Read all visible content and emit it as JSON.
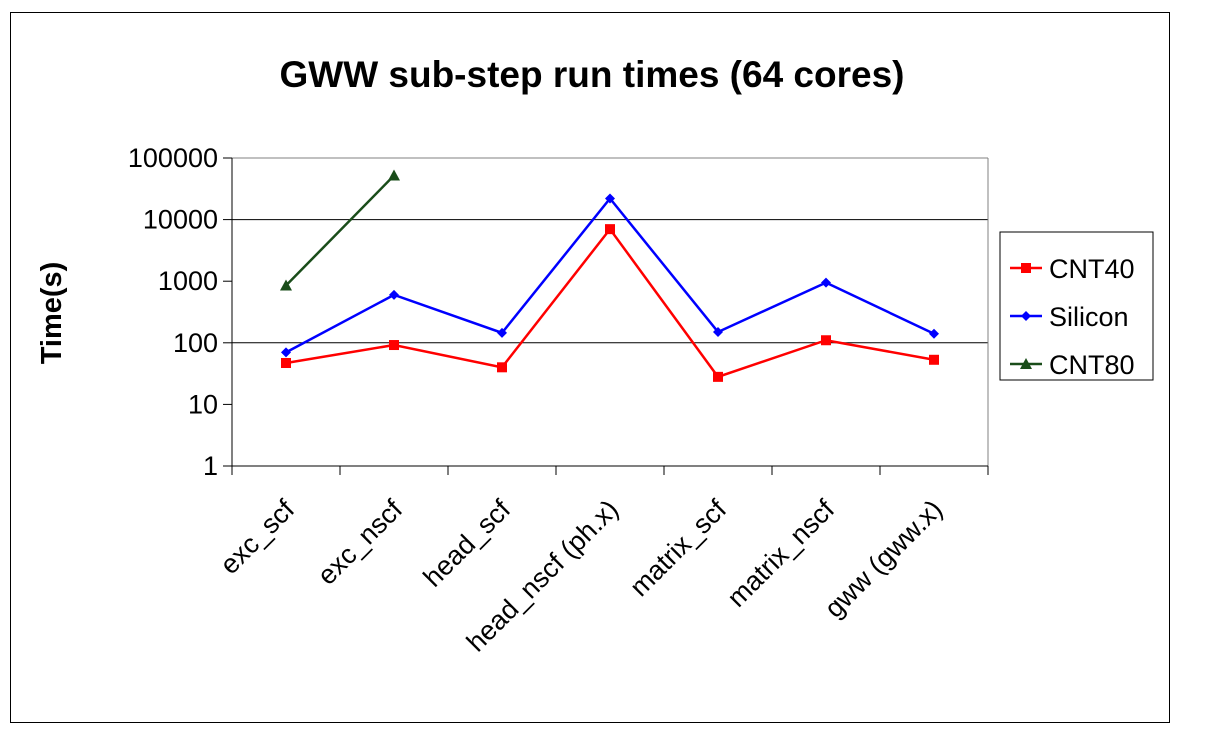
{
  "chart_data": {
    "type": "line",
    "title": "GWW sub-step run times (64 cores)",
    "xlabel": "",
    "ylabel": "Time(s)",
    "yscale": "log",
    "ylim": [
      1,
      100000
    ],
    "yticks": [
      "1",
      "10",
      "100",
      "1000",
      "10000",
      "100000"
    ],
    "ytick_values": [
      1,
      10,
      100,
      1000,
      10000,
      100000
    ],
    "gridlines": "major horizontal at 100, 10000, 100000",
    "legend_position": "right",
    "categories": [
      "exc_scf",
      "exc_nscf",
      "head_scf",
      "head_nscf (ph.x)",
      "matrix_scf",
      "matrix_nscf",
      "gww (gww.x)"
    ],
    "series": [
      {
        "name": "CNT40",
        "color": "#ff0000",
        "marker": "square",
        "values": [
          47,
          92,
          40,
          7000,
          28,
          110,
          53
        ]
      },
      {
        "name": "Silicon",
        "color": "#0000ff",
        "marker": "diamond",
        "values": [
          70,
          600,
          145,
          22000,
          150,
          950,
          140
        ]
      },
      {
        "name": "CNT80",
        "color": "#1a4d1a",
        "marker": "triangle",
        "values": [
          850,
          52000,
          null,
          null,
          null,
          null,
          null
        ]
      }
    ]
  }
}
